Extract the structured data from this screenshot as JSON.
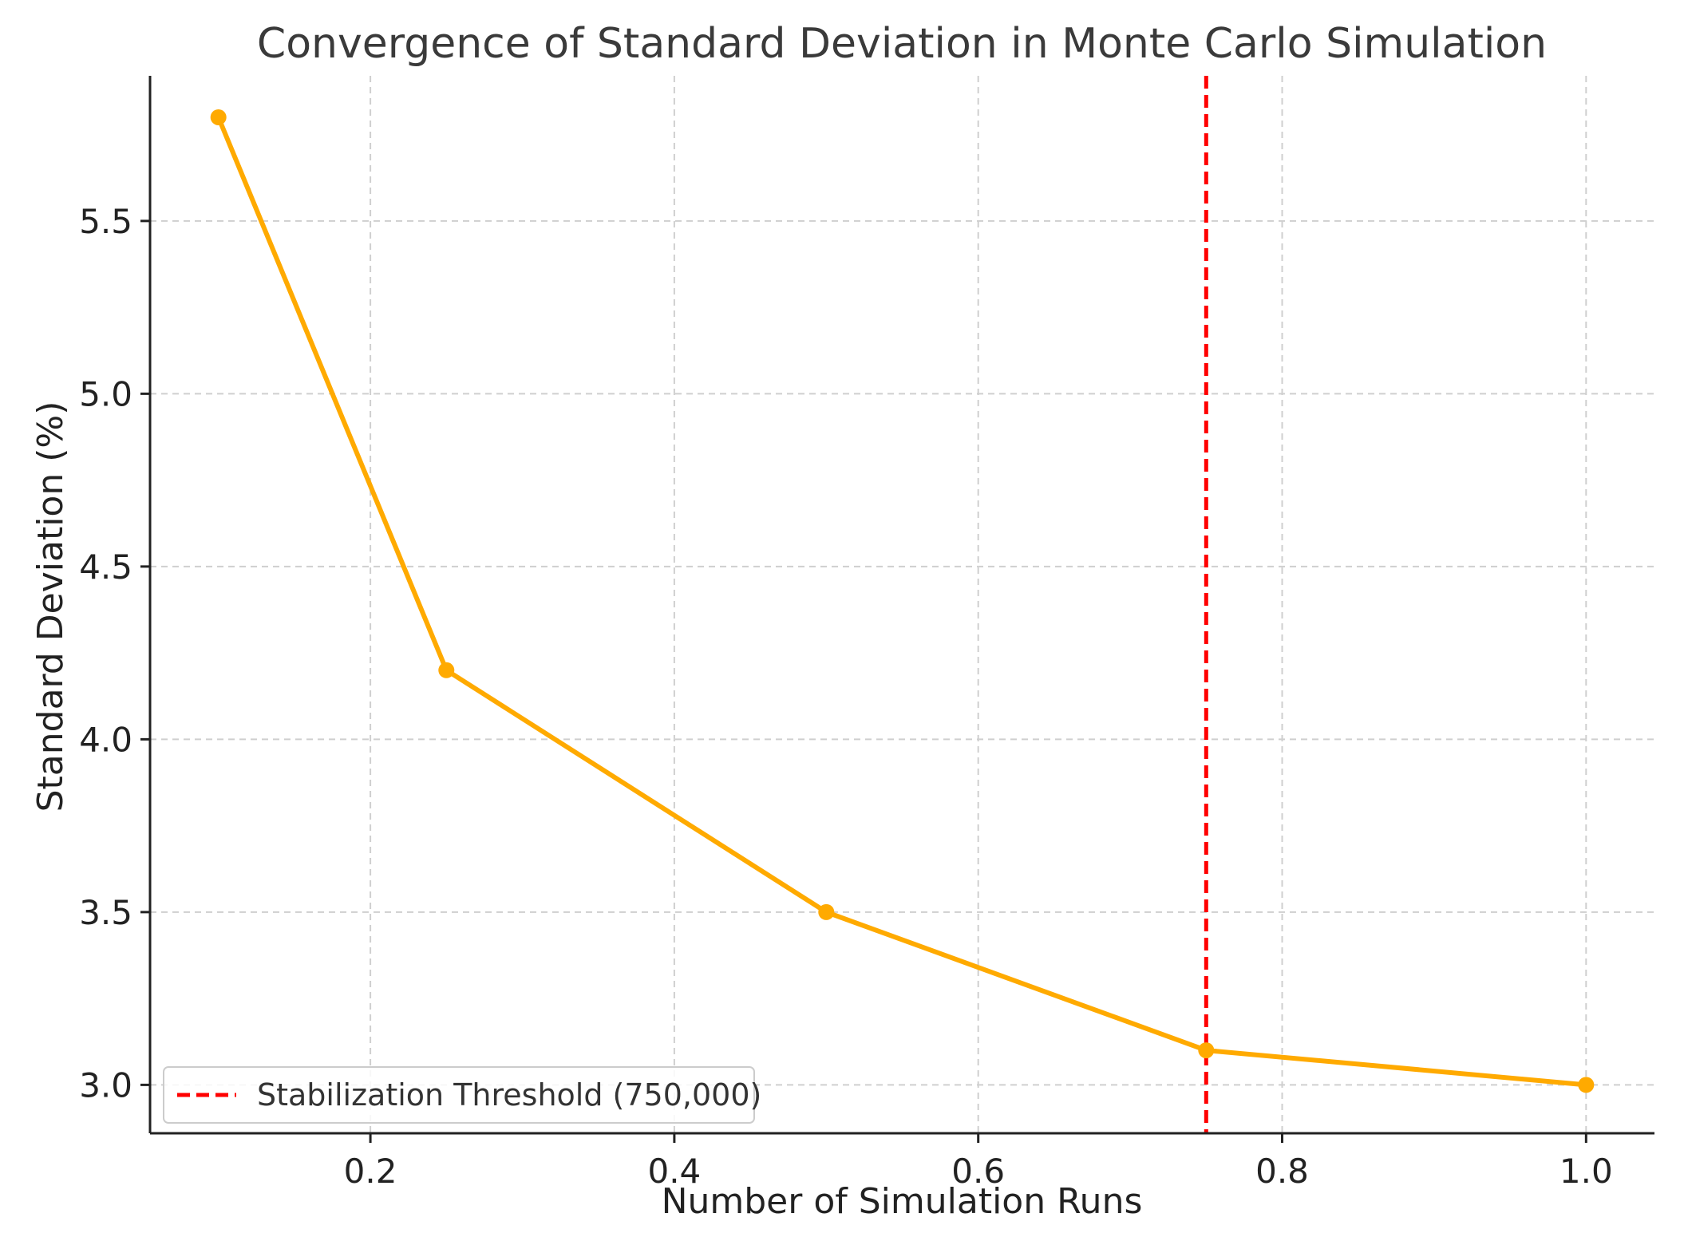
{
  "chart_data": {
    "type": "line",
    "title": "Convergence of Standard Deviation in Monte Carlo Simulation",
    "xlabel": "Number of Simulation Runs",
    "ylabel": "Standard Deviation (%)",
    "xlim": [
      0.055,
      1.045
    ],
    "ylim": [
      2.86,
      5.92
    ],
    "xticks": [
      0.2,
      0.4,
      0.6,
      0.8,
      1.0
    ],
    "xtick_labels": [
      "0.2",
      "0.4",
      "0.6",
      "0.8",
      "1.0"
    ],
    "yticks": [
      3.0,
      3.5,
      4.0,
      4.5,
      5.0,
      5.5
    ],
    "ytick_labels": [
      "3.0",
      "3.5",
      "4.0",
      "4.5",
      "5.0",
      "5.5"
    ],
    "grid": true,
    "series": [
      {
        "name": "Standard Deviation",
        "x": [
          0.1,
          0.25,
          0.5,
          0.75,
          1.0
        ],
        "values": [
          5.8,
          4.2,
          3.5,
          3.1,
          3.0
        ],
        "color": "#FFAA00",
        "marker": "circle"
      }
    ],
    "reference_lines": [
      {
        "orientation": "vertical",
        "x": 0.75,
        "label": "Stabilization Threshold (750,000)",
        "color": "#FF0000",
        "style": "dashed"
      }
    ],
    "legend": {
      "placement": "lower-left",
      "entries": [
        "Stabilization Threshold (750,000)"
      ]
    }
  }
}
